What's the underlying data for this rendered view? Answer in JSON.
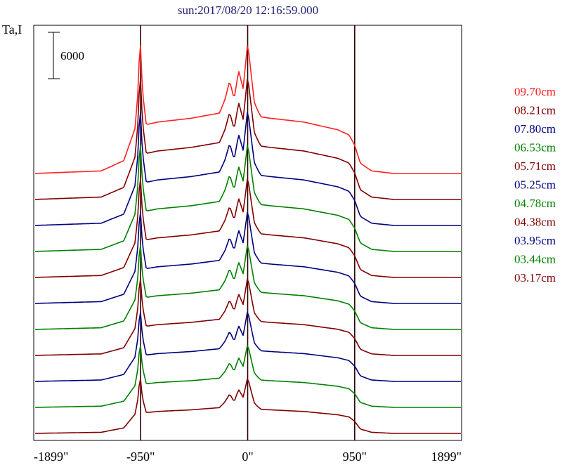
{
  "chart_data": {
    "type": "line",
    "title": "sun:2017/08/20 12:16:59.000",
    "ylabel": "Ta,I",
    "scale_bar_label": "6000",
    "scale_bar_value": 6000,
    "xlim": [
      -1899,
      1899
    ],
    "x_ticks": [
      {
        "value": -1899,
        "label": "-1899\""
      },
      {
        "value": -950,
        "label": "-950\""
      },
      {
        "value": 0,
        "label": "0\""
      },
      {
        "value": 950,
        "label": "950\""
      },
      {
        "value": 1899,
        "label": "1899\""
      }
    ],
    "vertical_markers": [
      -950,
      0,
      950
    ],
    "grid": false,
    "legend_position": "right",
    "series": [
      {
        "name": "09.70cm",
        "color": "#ff2020"
      },
      {
        "name": "08.21cm",
        "color": "#800000"
      },
      {
        "name": "07.80cm",
        "color": "#000080"
      },
      {
        "name": "06.53cm",
        "color": "#008000"
      },
      {
        "name": "05.71cm",
        "color": "#800000"
      },
      {
        "name": "05.25cm",
        "color": "#000080"
      },
      {
        "name": "04.78cm",
        "color": "#008000"
      },
      {
        "name": "04.38cm",
        "color": "#800000"
      },
      {
        "name": "03.95cm",
        "color": "#000080"
      },
      {
        "name": "03.44cm",
        "color": "#008000"
      },
      {
        "name": "03.17cm",
        "color": "#800000"
      }
    ],
    "profile_shape": {
      "x": [
        -1899,
        -1300,
        -1100,
        -1000,
        -975,
        -960,
        -950,
        -935,
        -900,
        -800,
        -500,
        -250,
        -200,
        -160,
        -120,
        -80,
        -40,
        0,
        30,
        60,
        100,
        120,
        200,
        500,
        800,
        900,
        950,
        1000,
        1100,
        1300,
        1899
      ],
      "relative_intensity": [
        0.0,
        0.02,
        0.1,
        0.35,
        0.62,
        0.95,
        1.0,
        0.65,
        0.38,
        0.4,
        0.43,
        0.47,
        0.58,
        0.72,
        0.58,
        0.8,
        0.66,
        1.02,
        0.78,
        0.55,
        0.47,
        0.44,
        0.43,
        0.4,
        0.34,
        0.3,
        0.22,
        0.08,
        0.02,
        0.0,
        0.0
      ]
    }
  }
}
